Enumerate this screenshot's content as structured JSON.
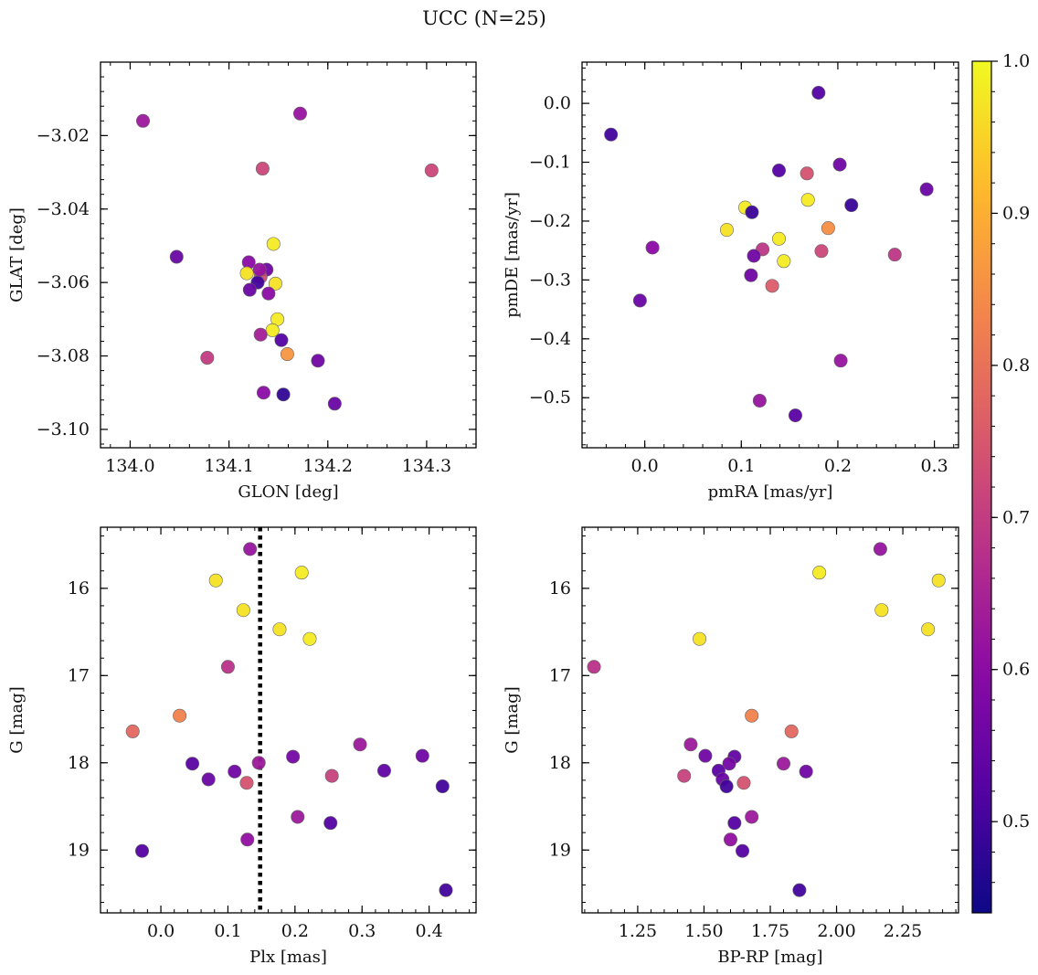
{
  "figure": {
    "title": "UCC (N=25)"
  },
  "colorbar": {
    "cmap": "plasma",
    "vmin": 0.44,
    "vmax": 1.0,
    "ticks": [
      "0.5",
      "0.6",
      "0.7",
      "0.8",
      "0.9",
      "1.0"
    ]
  },
  "chart_data": [
    {
      "type": "scatter",
      "xlabel": "GLON [deg]",
      "ylabel": "GLAT [deg]",
      "xlim": [
        133.97,
        134.35
      ],
      "ylim": [
        -3.105,
        -3.0
      ],
      "xticks": [
        "134.0",
        "134.1",
        "134.2",
        "134.3"
      ],
      "yticks": [
        "−3.02",
        "−3.04",
        "−3.06",
        "−3.08",
        "−3.10"
      ],
      "x": [
        134.013,
        134.172,
        134.134,
        134.305,
        134.047,
        134.145,
        134.12,
        134.138,
        134.118,
        134.132,
        134.147,
        134.129,
        134.121,
        134.14,
        134.149,
        134.144,
        134.132,
        134.153,
        134.159,
        134.078,
        134.19,
        134.135,
        134.155,
        134.207,
        134.131
      ],
      "y": [
        -3.016,
        -3.014,
        -3.029,
        -3.0295,
        -3.053,
        -3.0495,
        -3.0545,
        -3.0565,
        -3.0575,
        -3.0585,
        -3.0603,
        -3.06,
        -3.062,
        -3.063,
        -3.07,
        -3.073,
        -3.0742,
        -3.0757,
        -3.0795,
        -3.0805,
        -3.0813,
        -3.09,
        -3.0905,
        -3.093,
        -3.0565
      ],
      "color_value": [
        0.63,
        0.62,
        0.72,
        0.72,
        0.55,
        0.98,
        0.6,
        0.56,
        0.97,
        0.73,
        0.97,
        0.5,
        0.55,
        0.6,
        0.98,
        0.98,
        0.64,
        0.52,
        0.86,
        0.7,
        0.56,
        0.6,
        0.48,
        0.55,
        0.62
      ]
    },
    {
      "type": "scatter",
      "xlabel": "pmRA [mas/yr]",
      "ylabel": "pmDE [mas/yr]",
      "xlim": [
        -0.065,
        0.325
      ],
      "ylim": [
        -0.585,
        0.07
      ],
      "xticks": [
        "0.0",
        "0.1",
        "0.2",
        "0.3"
      ],
      "yticks": [
        "0.0",
        "−0.1",
        "−0.2",
        "−0.3",
        "−0.4",
        "−0.5"
      ],
      "x": [
        0.18,
        -0.035,
        0.202,
        0.292,
        0.139,
        0.168,
        0.214,
        0.104,
        0.169,
        0.111,
        0.085,
        0.19,
        0.008,
        0.139,
        0.122,
        0.183,
        0.259,
        0.113,
        0.144,
        0.11,
        0.132,
        -0.005,
        0.203,
        0.119,
        0.156
      ],
      "y": [
        0.018,
        -0.053,
        -0.104,
        -0.146,
        -0.114,
        -0.119,
        -0.173,
        -0.177,
        -0.164,
        -0.185,
        -0.215,
        -0.212,
        -0.245,
        -0.23,
        -0.248,
        -0.251,
        -0.257,
        -0.259,
        -0.268,
        -0.292,
        -0.31,
        -0.335,
        -0.437,
        -0.505,
        -0.53
      ],
      "color_value": [
        0.52,
        0.5,
        0.56,
        0.55,
        0.52,
        0.74,
        0.49,
        0.98,
        0.98,
        0.49,
        0.97,
        0.85,
        0.6,
        0.98,
        0.69,
        0.72,
        0.69,
        0.56,
        0.98,
        0.56,
        0.76,
        0.55,
        0.62,
        0.62,
        0.53
      ]
    },
    {
      "type": "scatter",
      "xlabel": "Plx [mas]",
      "ylabel": "G [mag]",
      "xlim": [
        -0.09,
        0.47
      ],
      "ylim": [
        19.72,
        15.3
      ],
      "y_inverted": true,
      "xticks": [
        "0.0",
        "0.1",
        "0.2",
        "0.3",
        "0.4"
      ],
      "yticks": [
        "16",
        "17",
        "18",
        "19"
      ],
      "vline_x": 0.148,
      "x": [
        0.133,
        0.082,
        0.21,
        0.123,
        0.177,
        0.222,
        0.1,
        -0.042,
        0.028,
        0.047,
        0.071,
        0.11,
        0.146,
        0.128,
        0.197,
        0.297,
        0.333,
        0.39,
        0.255,
        0.42,
        0.204,
        0.253,
        0.129,
        -0.028,
        0.425
      ],
      "y": [
        15.55,
        15.91,
        15.82,
        16.25,
        16.47,
        16.58,
        16.9,
        17.64,
        17.46,
        18.01,
        18.19,
        18.1,
        18.0,
        18.23,
        17.93,
        17.79,
        18.09,
        17.92,
        18.15,
        18.27,
        18.62,
        18.69,
        18.88,
        19.01,
        19.46
      ],
      "color_value": [
        0.62,
        0.97,
        0.98,
        0.97,
        0.97,
        0.98,
        0.68,
        0.78,
        0.83,
        0.53,
        0.55,
        0.56,
        0.63,
        0.74,
        0.57,
        0.63,
        0.54,
        0.56,
        0.71,
        0.5,
        0.63,
        0.52,
        0.61,
        0.52,
        0.5
      ]
    },
    {
      "type": "scatter",
      "xlabel": "BP-RP [mag]",
      "ylabel": "G [mag]",
      "xlim": [
        1.04,
        2.46
      ],
      "ylim": [
        19.72,
        15.3
      ],
      "y_inverted": true,
      "xticks": [
        "1.25",
        "1.50",
        "1.75",
        "2.00",
        "2.25"
      ],
      "yticks": [
        "16",
        "17",
        "18",
        "19"
      ],
      "x": [
        2.165,
        1.935,
        2.385,
        2.17,
        2.345,
        1.483,
        1.085,
        1.68,
        1.83,
        1.45,
        1.505,
        1.615,
        1.595,
        1.8,
        1.555,
        1.885,
        1.425,
        1.57,
        1.65,
        1.585,
        1.68,
        1.615,
        1.6,
        1.645,
        1.86
      ],
      "y": [
        15.55,
        15.82,
        15.91,
        16.25,
        16.47,
        16.58,
        16.9,
        17.46,
        17.64,
        17.79,
        17.92,
        17.93,
        18.01,
        18.01,
        18.09,
        18.1,
        18.15,
        18.19,
        18.23,
        18.27,
        18.62,
        18.69,
        18.88,
        19.01,
        19.46
      ],
      "color_value": [
        0.62,
        0.98,
        0.97,
        0.97,
        0.97,
        0.97,
        0.68,
        0.83,
        0.78,
        0.63,
        0.56,
        0.54,
        0.57,
        0.63,
        0.53,
        0.56,
        0.71,
        0.55,
        0.74,
        0.5,
        0.63,
        0.52,
        0.61,
        0.52,
        0.5
      ]
    }
  ]
}
